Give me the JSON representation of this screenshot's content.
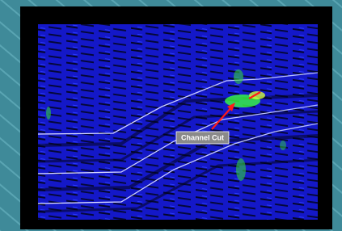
{
  "annotation": {
    "label": "Channel Cut"
  }
}
